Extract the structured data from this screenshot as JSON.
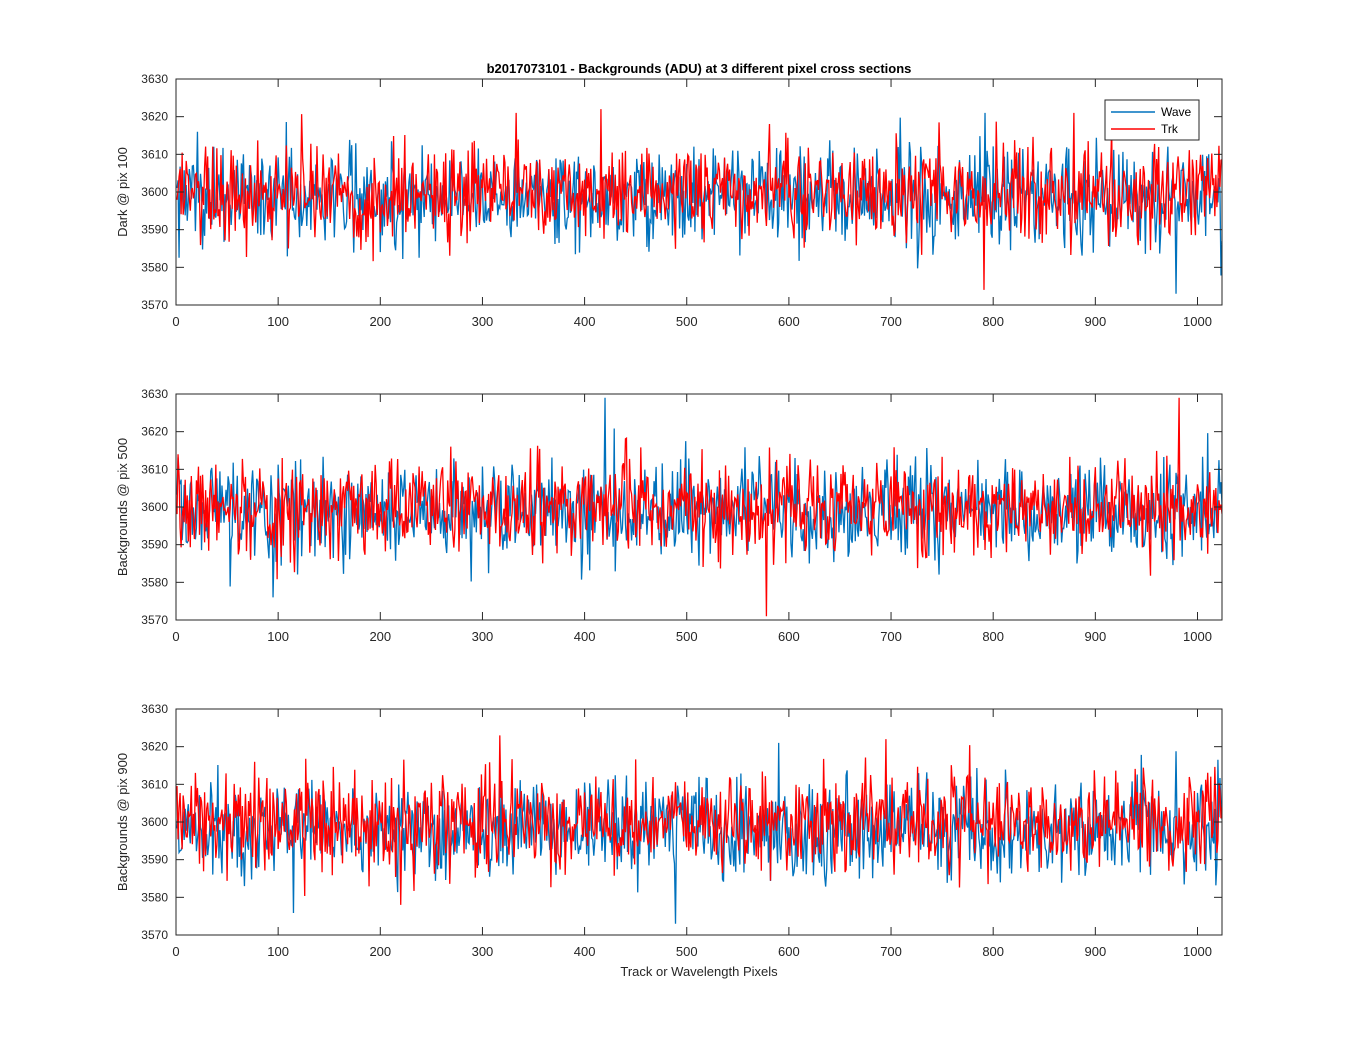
{
  "figure": {
    "title": "b2017073101 - Backgrounds (ADU) at 3 different pixel cross sections",
    "xlabel": "Track or Wavelength Pixels"
  },
  "legend": {
    "placement": "top-right of first panel",
    "entries": [
      {
        "label": "Wave",
        "color": "#0072bd"
      },
      {
        "label": "Trk",
        "color": "#ff0000"
      }
    ]
  },
  "chart_data": [
    {
      "type": "line",
      "ylabel": "Dark @ pix 100",
      "xlim": [
        0,
        1024
      ],
      "ylim": [
        3570,
        3630
      ],
      "xticks": [
        0,
        100,
        200,
        300,
        400,
        500,
        600,
        700,
        800,
        900,
        1000
      ],
      "yticks": [
        3570,
        3580,
        3590,
        3600,
        3610,
        3620,
        3630
      ],
      "series": [
        {
          "name": "Wave",
          "color": "#0072bd",
          "n_points": 1024,
          "mean": 3599,
          "stdev": 6.5,
          "min": 3573,
          "max": 3621
        },
        {
          "name": "Trk",
          "color": "#ff0000",
          "n_points": 1024,
          "mean": 3600,
          "stdev": 6.5,
          "min": 3574,
          "max": 3622
        }
      ]
    },
    {
      "type": "line",
      "ylabel": "Backgrounds @ pix 500",
      "xlim": [
        0,
        1024
      ],
      "ylim": [
        3570,
        3630
      ],
      "xticks": [
        0,
        100,
        200,
        300,
        400,
        500,
        600,
        700,
        800,
        900,
        1000
      ],
      "yticks": [
        3570,
        3580,
        3590,
        3600,
        3610,
        3620,
        3630
      ],
      "series": [
        {
          "name": "Wave",
          "color": "#0072bd",
          "n_points": 1024,
          "mean": 3599,
          "stdev": 6.5,
          "min": 3576,
          "max": 3629
        },
        {
          "name": "Trk",
          "color": "#ff0000",
          "n_points": 1024,
          "mean": 3600,
          "stdev": 6.5,
          "min": 3571,
          "max": 3629
        }
      ]
    },
    {
      "type": "line",
      "ylabel": "Backgrounds @ pix 900",
      "xlim": [
        0,
        1024
      ],
      "ylim": [
        3570,
        3630
      ],
      "xticks": [
        0,
        100,
        200,
        300,
        400,
        500,
        600,
        700,
        800,
        900,
        1000
      ],
      "yticks": [
        3570,
        3580,
        3590,
        3600,
        3610,
        3620,
        3630
      ],
      "series": [
        {
          "name": "Wave",
          "color": "#0072bd",
          "n_points": 1024,
          "mean": 3598,
          "stdev": 6.5,
          "min": 3573,
          "max": 3621
        },
        {
          "name": "Trk",
          "color": "#ff0000",
          "n_points": 1024,
          "mean": 3600,
          "stdev": 6.5,
          "min": 3578,
          "max": 3623
        }
      ]
    }
  ]
}
